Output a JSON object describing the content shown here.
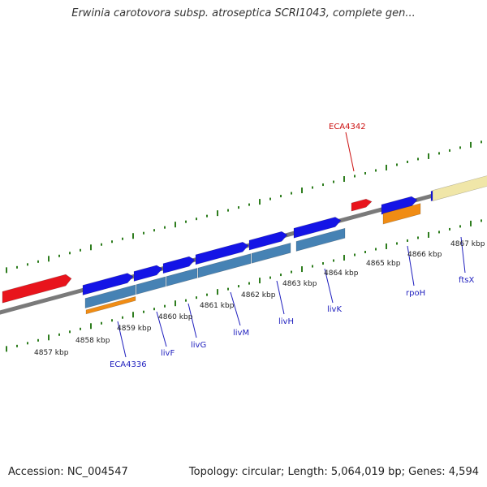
{
  "title": "Erwinia carotovora subsp. atroseptica SCRI1043, complete gen...",
  "footer": {
    "accession": "Accession: NC_004547",
    "summary": "Topology: circular; Length: 5,064,019 bp; Genes: 4,594"
  },
  "colors": {
    "backbone": "#7a7a7a",
    "ticks": "#2e7d1e",
    "feature_red": "#e8141c",
    "gene_blue": "#1414e6",
    "cds_steelblue": "#4682b4",
    "rpoH_orange": "#f08c14",
    "ftsX_pale": "#f0e6a8",
    "label_blue": "#1e1ebe",
    "label_red": "#cc1010"
  },
  "chart_data": {
    "type": "genome-track",
    "scale_unit": "kbp",
    "scale_labels": [
      "4857 kbp",
      "4858 kbp",
      "4859 kbp",
      "4860 kbp",
      "4861 kbp",
      "4862 kbp",
      "4863 kbp",
      "4864 kbp",
      "4865 kbp",
      "4866 kbp",
      "4867 kbp"
    ],
    "genes": [
      {
        "name": "ECA4336",
        "color": "label_blue"
      },
      {
        "name": "livF",
        "color": "label_blue"
      },
      {
        "name": "livG",
        "color": "label_blue"
      },
      {
        "name": "livM",
        "color": "label_blue"
      },
      {
        "name": "livH",
        "color": "label_blue"
      },
      {
        "name": "livK",
        "color": "label_blue"
      },
      {
        "name": "rpoH",
        "color": "label_blue"
      },
      {
        "name": "ftsX",
        "color": "label_blue"
      },
      {
        "name": "ECA4342",
        "color": "label_red"
      }
    ]
  }
}
